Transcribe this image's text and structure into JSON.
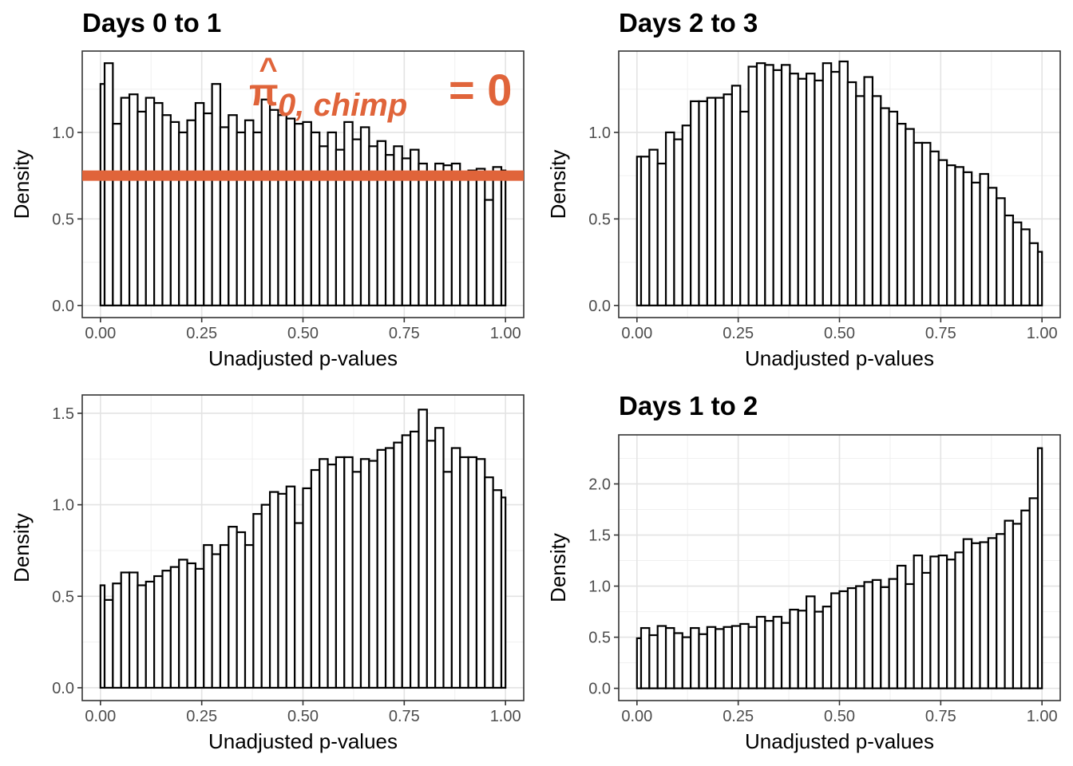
{
  "chart_data": [
    {
      "type": "bar",
      "title": "Days 0 to 1",
      "xlabel": "Unadjusted p-values",
      "ylabel": "Density",
      "xlim": [
        -0.045,
        1.045
      ],
      "ylim": [
        -0.07,
        1.47
      ],
      "xticks": [
        "0.00",
        "0.25",
        "0.50",
        "0.75",
        "1.00"
      ],
      "yticks": [
        "0.0",
        "0.5",
        "1.0"
      ],
      "bins": 50,
      "values": [
        1.28,
        1.4,
        1.05,
        1.2,
        1.22,
        1.12,
        1.2,
        1.17,
        1.1,
        1.06,
        1.0,
        1.07,
        1.17,
        1.11,
        1.28,
        1.03,
        1.1,
        1.0,
        1.07,
        1.0,
        1.19,
        1.13,
        1.1,
        1.08,
        1.05,
        1.06,
        1.0,
        0.92,
        1.0,
        0.9,
        1.06,
        0.96,
        1.03,
        0.92,
        0.95,
        0.87,
        0.92,
        0.85,
        0.9,
        0.82,
        0.73,
        0.82,
        0.81,
        0.82,
        0.74,
        0.78,
        0.79,
        0.61,
        0.8,
        0.78
      ],
      "hline": 0.75,
      "hline_color": "#e0643a",
      "annotation": {
        "base": "π",
        "hat": "^",
        "sub": "0, chimp",
        "eq": "= 0"
      },
      "grid": true
    },
    {
      "type": "bar",
      "title": "Days 2 to 3",
      "xlabel": "Unadjusted p-values",
      "ylabel": "Density",
      "xlim": [
        -0.045,
        1.045
      ],
      "ylim": [
        -0.07,
        1.47
      ],
      "xticks": [
        "0.00",
        "0.25",
        "0.50",
        "0.75",
        "1.00"
      ],
      "yticks": [
        "0.0",
        "0.5",
        "1.0"
      ],
      "bins": 50,
      "values": [
        0.86,
        0.86,
        0.9,
        0.82,
        1.0,
        0.96,
        1.04,
        1.18,
        1.18,
        1.2,
        1.2,
        1.22,
        1.27,
        1.12,
        1.38,
        1.4,
        1.39,
        1.36,
        1.39,
        1.34,
        1.31,
        1.34,
        1.3,
        1.4,
        1.35,
        1.41,
        1.29,
        1.21,
        1.32,
        1.21,
        1.14,
        1.12,
        1.05,
        1.02,
        0.94,
        0.94,
        0.89,
        0.84,
        0.81,
        0.8,
        0.77,
        0.71,
        0.76,
        0.68,
        0.62,
        0.52,
        0.48,
        0.44,
        0.36,
        0.31
      ],
      "grid": true
    },
    {
      "type": "bar",
      "title": "",
      "xlabel": "Unadjusted p-values",
      "ylabel": "Density",
      "xlim": [
        -0.045,
        1.045
      ],
      "ylim": [
        -0.07,
        1.6
      ],
      "xticks": [
        "0.00",
        "0.25",
        "0.50",
        "0.75",
        "1.00"
      ],
      "yticks": [
        "0.0",
        "0.5",
        "1.0",
        "1.5"
      ],
      "bins": 50,
      "values": [
        0.56,
        0.48,
        0.57,
        0.63,
        0.63,
        0.56,
        0.58,
        0.61,
        0.64,
        0.66,
        0.7,
        0.68,
        0.65,
        0.78,
        0.73,
        0.78,
        0.88,
        0.85,
        0.78,
        0.95,
        1.0,
        1.07,
        1.06,
        1.1,
        0.9,
        1.09,
        1.19,
        1.25,
        1.22,
        1.26,
        1.26,
        1.18,
        1.25,
        1.24,
        1.3,
        1.31,
        1.34,
        1.38,
        1.4,
        1.52,
        1.35,
        1.42,
        1.18,
        1.31,
        1.26,
        1.26,
        1.25,
        1.15,
        1.08,
        1.04
      ],
      "grid": true
    },
    {
      "type": "bar",
      "title": "Days 1 to 2",
      "xlabel": "Unadjusted p-values",
      "ylabel": "Density",
      "xlim": [
        -0.045,
        1.045
      ],
      "ylim": [
        -0.12,
        2.48
      ],
      "xticks": [
        "0.00",
        "0.25",
        "0.50",
        "0.75",
        "1.00"
      ],
      "yticks": [
        "0.0",
        "0.5",
        "1.0",
        "1.5",
        "2.0"
      ],
      "bins": 50,
      "values": [
        0.49,
        0.59,
        0.52,
        0.61,
        0.59,
        0.54,
        0.5,
        0.59,
        0.53,
        0.6,
        0.58,
        0.6,
        0.61,
        0.63,
        0.6,
        0.7,
        0.66,
        0.7,
        0.64,
        0.77,
        0.76,
        0.9,
        0.75,
        0.8,
        0.93,
        0.95,
        0.98,
        1.0,
        1.04,
        1.06,
        0.99,
        1.07,
        1.2,
        1.02,
        1.3,
        1.13,
        1.29,
        1.3,
        1.26,
        1.33,
        1.46,
        1.42,
        1.43,
        1.47,
        1.51,
        1.64,
        1.61,
        1.74,
        1.86,
        2.35
      ],
      "grid": true
    }
  ]
}
